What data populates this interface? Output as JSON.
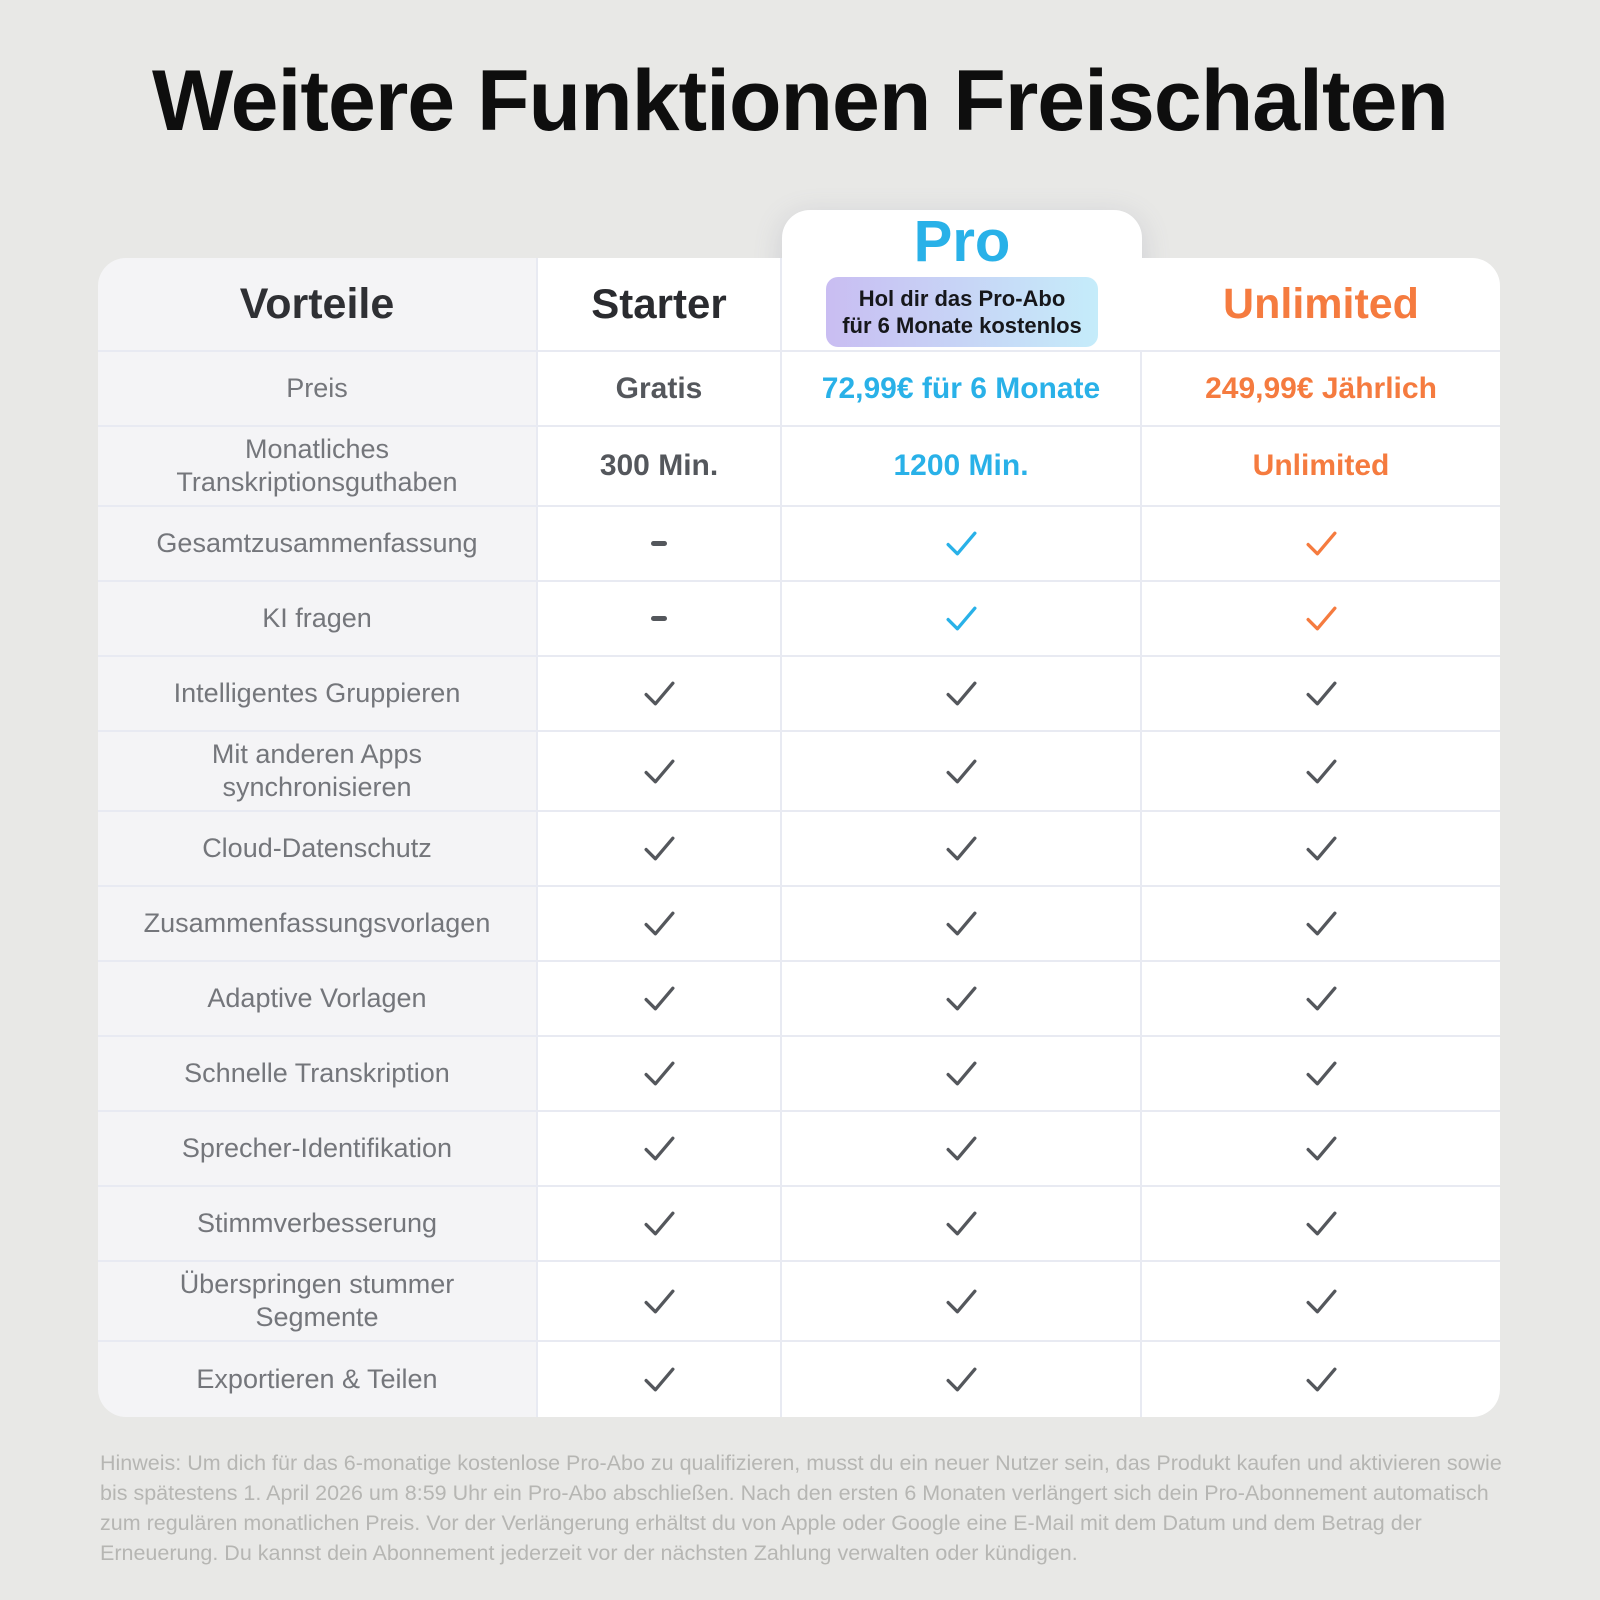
{
  "title": "Weitere Funktionen Freischalten",
  "table": {
    "header": {
      "benefits_label": "Vorteile",
      "starter_label": "Starter",
      "pro_label": "Pro",
      "pro_badge_line1": "Hol dir das Pro-Abo",
      "pro_badge_line2": "für 6 Monate kostenlos",
      "unlimited_label": "Unlimited"
    },
    "rows": [
      {
        "label": "Preis",
        "starter": {
          "type": "text",
          "value": "Gratis",
          "color": "gray"
        },
        "pro": {
          "type": "text",
          "value": "72,99€ für 6 Monate",
          "color": "blue"
        },
        "unlimited": {
          "type": "text",
          "value": "249,99€ Jährlich",
          "color": "orange"
        }
      },
      {
        "label": "Monatliches Transkriptionsguthaben",
        "starter": {
          "type": "text",
          "value": "300 Min.",
          "color": "gray"
        },
        "pro": {
          "type": "text",
          "value": "1200 Min.",
          "color": "blue"
        },
        "unlimited": {
          "type": "text",
          "value": "Unlimited",
          "color": "orange"
        }
      },
      {
        "label": "Gesamtzusammenfassung",
        "starter": {
          "type": "dash",
          "color": "gray"
        },
        "pro": {
          "type": "check",
          "color": "blue"
        },
        "unlimited": {
          "type": "check",
          "color": "orange"
        }
      },
      {
        "label": "KI fragen",
        "starter": {
          "type": "dash",
          "color": "gray"
        },
        "pro": {
          "type": "check",
          "color": "blue"
        },
        "unlimited": {
          "type": "check",
          "color": "orange"
        }
      },
      {
        "label": "Intelligentes Gruppieren",
        "starter": {
          "type": "check",
          "color": "gray"
        },
        "pro": {
          "type": "check",
          "color": "gray"
        },
        "unlimited": {
          "type": "check",
          "color": "gray"
        }
      },
      {
        "label": "Mit anderen Apps synchronisieren",
        "starter": {
          "type": "check",
          "color": "gray"
        },
        "pro": {
          "type": "check",
          "color": "gray"
        },
        "unlimited": {
          "type": "check",
          "color": "gray"
        }
      },
      {
        "label": "Cloud-Datenschutz",
        "starter": {
          "type": "check",
          "color": "gray"
        },
        "pro": {
          "type": "check",
          "color": "gray"
        },
        "unlimited": {
          "type": "check",
          "color": "gray"
        }
      },
      {
        "label": "Zusammenfassungsvorlagen",
        "starter": {
          "type": "check",
          "color": "gray"
        },
        "pro": {
          "type": "check",
          "color": "gray"
        },
        "unlimited": {
          "type": "check",
          "color": "gray"
        }
      },
      {
        "label": "Adaptive Vorlagen",
        "starter": {
          "type": "check",
          "color": "gray"
        },
        "pro": {
          "type": "check",
          "color": "gray"
        },
        "unlimited": {
          "type": "check",
          "color": "gray"
        }
      },
      {
        "label": "Schnelle Transkription",
        "starter": {
          "type": "check",
          "color": "gray"
        },
        "pro": {
          "type": "check",
          "color": "gray"
        },
        "unlimited": {
          "type": "check",
          "color": "gray"
        }
      },
      {
        "label": "Sprecher-Identifikation",
        "starter": {
          "type": "check",
          "color": "gray"
        },
        "pro": {
          "type": "check",
          "color": "gray"
        },
        "unlimited": {
          "type": "check",
          "color": "gray"
        }
      },
      {
        "label": "Stimmverbesserung",
        "starter": {
          "type": "check",
          "color": "gray"
        },
        "pro": {
          "type": "check",
          "color": "gray"
        },
        "unlimited": {
          "type": "check",
          "color": "gray"
        }
      },
      {
        "label": "Überspringen stummer Segmente",
        "starter": {
          "type": "check",
          "color": "gray"
        },
        "pro": {
          "type": "check",
          "color": "gray"
        },
        "unlimited": {
          "type": "check",
          "color": "gray"
        }
      },
      {
        "label": "Exportieren & Teilen",
        "starter": {
          "type": "check",
          "color": "gray"
        },
        "pro": {
          "type": "check",
          "color": "gray"
        },
        "unlimited": {
          "type": "check",
          "color": "gray"
        }
      }
    ]
  },
  "colors": {
    "pro_blue": "#29b1e8",
    "unlimited_orange": "#f57b3f",
    "check_gray": "#54575c",
    "badge_gradient_start": "#c9bdf2",
    "badge_gradient_end": "#c5ecfa"
  },
  "footnote": "Hinweis: Um dich für das 6-monatige kostenlose Pro-Abo zu qualifizieren, musst du ein neuer Nutzer sein, das Produkt kaufen und aktivieren sowie bis spätestens 1. April 2026 um 8:59 Uhr ein Pro-Abo abschließen. Nach den ersten 6 Monaten verlängert sich dein Pro-Abonnement automatisch zum regulären monatlichen Preis. Vor der Verlängerung erhältst du von Apple oder Google eine E-Mail mit dem Datum und dem Betrag der Erneuerung. Du kannst dein Abonnement jederzeit vor der nächsten Zahlung verwalten oder kündigen."
}
